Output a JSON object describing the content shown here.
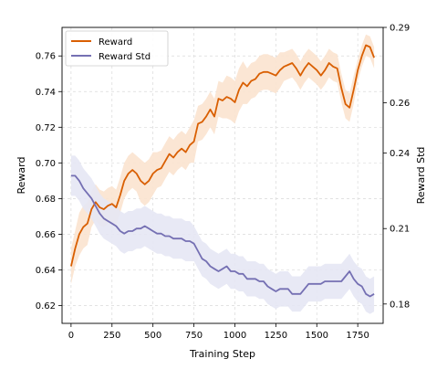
{
  "chart_data": {
    "type": "line",
    "xlabel": "Training Step",
    "ylabel": "Reward",
    "y2label": "Reward Std",
    "xlim": [
      -55,
      1905
    ],
    "ylim": [
      0.61,
      0.776
    ],
    "y2lim": [
      0.1723,
      0.29
    ],
    "xticks": [
      0,
      250,
      500,
      750,
      1000,
      1250,
      1500,
      1750
    ],
    "yticks": [
      0.62,
      0.64,
      0.66,
      0.68,
      0.7,
      0.72,
      0.74,
      0.76
    ],
    "y2ticks": [
      0.18,
      0.21,
      0.24,
      0.26,
      0.29
    ],
    "grid": true,
    "legend_position": "top-left",
    "series": [
      {
        "name": "Reward",
        "axis": "left",
        "color": "#d95f02",
        "band_color": "#fbe3cf",
        "x": [
          0,
          25,
          50,
          75,
          100,
          125,
          150,
          175,
          200,
          225,
          250,
          275,
          300,
          325,
          350,
          375,
          400,
          425,
          450,
          475,
          500,
          525,
          550,
          575,
          600,
          625,
          650,
          675,
          700,
          725,
          750,
          775,
          800,
          825,
          850,
          875,
          900,
          925,
          950,
          975,
          1000,
          1025,
          1050,
          1075,
          1100,
          1125,
          1150,
          1175,
          1200,
          1225,
          1250,
          1275,
          1300,
          1325,
          1350,
          1375,
          1400,
          1425,
          1450,
          1475,
          1500,
          1525,
          1550,
          1575,
          1600,
          1625,
          1650,
          1675,
          1700,
          1725,
          1750,
          1775,
          1800,
          1825,
          1850
        ],
        "y": [
          0.642,
          0.652,
          0.66,
          0.664,
          0.666,
          0.674,
          0.678,
          0.675,
          0.674,
          0.676,
          0.677,
          0.675,
          0.682,
          0.69,
          0.694,
          0.696,
          0.694,
          0.69,
          0.688,
          0.69,
          0.694,
          0.696,
          0.697,
          0.701,
          0.705,
          0.703,
          0.706,
          0.708,
          0.706,
          0.71,
          0.712,
          0.722,
          0.723,
          0.726,
          0.73,
          0.726,
          0.736,
          0.735,
          0.737,
          0.736,
          0.734,
          0.741,
          0.745,
          0.743,
          0.746,
          0.747,
          0.75,
          0.751,
          0.751,
          0.75,
          0.749,
          0.752,
          0.754,
          0.755,
          0.756,
          0.753,
          0.749,
          0.753,
          0.756,
          0.754,
          0.752,
          0.749,
          0.752,
          0.756,
          0.754,
          0.753,
          0.742,
          0.733,
          0.731,
          0.741,
          0.752,
          0.76,
          0.766,
          0.765,
          0.759
        ],
        "band": [
          0.01,
          0.01,
          0.012,
          0.012,
          0.012,
          0.01,
          0.01,
          0.01,
          0.01,
          0.01,
          0.01,
          0.01,
          0.01,
          0.01,
          0.01,
          0.01,
          0.01,
          0.012,
          0.012,
          0.012,
          0.012,
          0.01,
          0.01,
          0.01,
          0.01,
          0.01,
          0.01,
          0.01,
          0.01,
          0.01,
          0.012,
          0.01,
          0.01,
          0.01,
          0.01,
          0.01,
          0.01,
          0.01,
          0.012,
          0.012,
          0.012,
          0.012,
          0.012,
          0.01,
          0.01,
          0.01,
          0.01,
          0.01,
          0.01,
          0.01,
          0.01,
          0.01,
          0.008,
          0.008,
          0.008,
          0.008,
          0.008,
          0.008,
          0.008,
          0.008,
          0.008,
          0.008,
          0.008,
          0.008,
          0.008,
          0.008,
          0.008,
          0.008,
          0.008,
          0.008,
          0.006,
          0.006,
          0.006,
          0.006,
          0.006
        ]
      },
      {
        "name": "Reward Std",
        "axis": "right",
        "color": "#7570b3",
        "band_color": "#e6e7f4",
        "x": [
          0,
          25,
          50,
          75,
          100,
          125,
          150,
          175,
          200,
          225,
          250,
          275,
          300,
          325,
          350,
          375,
          400,
          425,
          450,
          475,
          500,
          525,
          550,
          575,
          600,
          625,
          650,
          675,
          700,
          725,
          750,
          775,
          800,
          825,
          850,
          875,
          900,
          925,
          950,
          975,
          1000,
          1025,
          1050,
          1075,
          1100,
          1125,
          1150,
          1175,
          1200,
          1225,
          1250,
          1275,
          1300,
          1325,
          1350,
          1375,
          1400,
          1425,
          1450,
          1475,
          1500,
          1525,
          1550,
          1575,
          1600,
          1625,
          1650,
          1675,
          1700,
          1725,
          1750,
          1775,
          1800,
          1825,
          1850
        ],
        "y": [
          0.231,
          0.231,
          0.229,
          0.226,
          0.224,
          0.222,
          0.219,
          0.216,
          0.214,
          0.213,
          0.212,
          0.211,
          0.209,
          0.208,
          0.209,
          0.209,
          0.21,
          0.21,
          0.211,
          0.21,
          0.209,
          0.208,
          0.208,
          0.207,
          0.207,
          0.206,
          0.206,
          0.206,
          0.205,
          0.205,
          0.204,
          0.201,
          0.198,
          0.197,
          0.195,
          0.194,
          0.193,
          0.194,
          0.195,
          0.193,
          0.193,
          0.192,
          0.192,
          0.19,
          0.19,
          0.19,
          0.189,
          0.189,
          0.187,
          0.186,
          0.185,
          0.186,
          0.186,
          0.186,
          0.184,
          0.184,
          0.184,
          0.186,
          0.188,
          0.188,
          0.188,
          0.188,
          0.189,
          0.189,
          0.189,
          0.189,
          0.189,
          0.191,
          0.193,
          0.19,
          0.188,
          0.187,
          0.184,
          0.183,
          0.184
        ],
        "band": [
          0.008,
          0.008,
          0.008,
          0.008,
          0.008,
          0.008,
          0.008,
          0.008,
          0.008,
          0.008,
          0.008,
          0.008,
          0.008,
          0.008,
          0.008,
          0.008,
          0.008,
          0.008,
          0.008,
          0.008,
          0.008,
          0.008,
          0.008,
          0.008,
          0.008,
          0.008,
          0.008,
          0.008,
          0.008,
          0.008,
          0.007,
          0.007,
          0.007,
          0.007,
          0.007,
          0.007,
          0.007,
          0.007,
          0.007,
          0.007,
          0.007,
          0.007,
          0.007,
          0.007,
          0.007,
          0.007,
          0.007,
          0.007,
          0.007,
          0.007,
          0.007,
          0.007,
          0.007,
          0.007,
          0.007,
          0.007,
          0.007,
          0.007,
          0.007,
          0.007,
          0.007,
          0.007,
          0.007,
          0.007,
          0.007,
          0.007,
          0.007,
          0.007,
          0.007,
          0.007,
          0.007,
          0.007,
          0.007,
          0.007,
          0.007
        ]
      }
    ]
  }
}
